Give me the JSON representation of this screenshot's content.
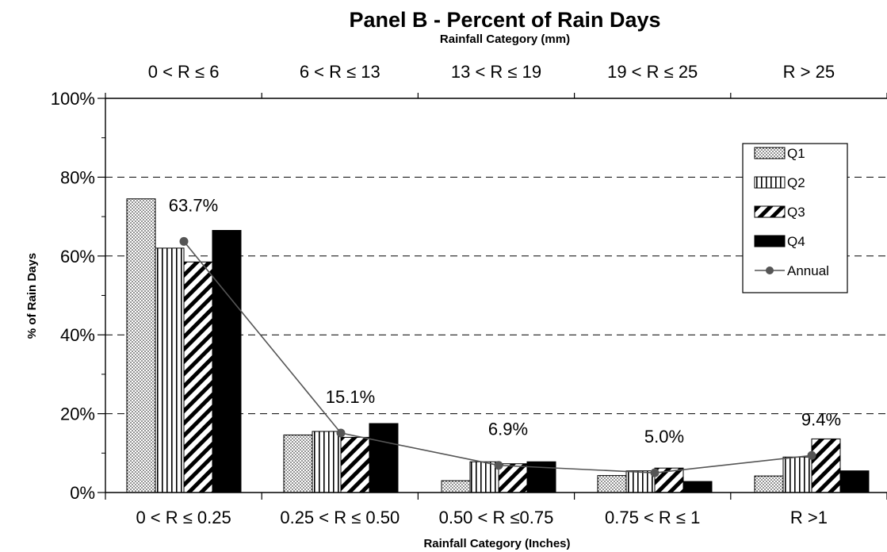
{
  "chart_data": {
    "type": "bar",
    "title": "Panel B - Percent of Rain Days",
    "top_axis_label": "Rainfall Category (mm)",
    "top_categories": [
      "0 < R ≤ 6",
      "6 < R ≤ 13",
      "13 < R ≤ 19",
      "19 < R ≤ 25",
      "R > 25"
    ],
    "xlabel": "Rainfall Category (Inches)",
    "ylabel": "% of Rain Days",
    "categories": [
      "0 < R ≤ 0.25",
      "0.25 < R ≤ 0.50",
      "0.50 < R ≤0.75",
      "0.75 < R ≤ 1",
      "R >1"
    ],
    "ylim": [
      0,
      100
    ],
    "yticks": [
      "0%",
      "20%",
      "40%",
      "60%",
      "80%",
      "100%"
    ],
    "grid": "dashed horizontal at 20% steps",
    "legend_position": "top-right",
    "series": [
      {
        "name": "Q1",
        "pattern": "dots",
        "values": [
          74.5,
          14.6,
          3.0,
          4.3,
          4.2
        ]
      },
      {
        "name": "Q2",
        "pattern": "vertical-stripes",
        "values": [
          62.0,
          15.5,
          7.8,
          5.5,
          9.0
        ]
      },
      {
        "name": "Q3",
        "pattern": "diagonal-stripes",
        "values": [
          58.5,
          14.0,
          7.3,
          6.2,
          13.6
        ]
      },
      {
        "name": "Q4",
        "pattern": "solid",
        "color": "#000000",
        "values": [
          66.5,
          17.5,
          7.8,
          2.8,
          5.5
        ]
      }
    ],
    "line": {
      "name": "Annual",
      "color": "#555555",
      "values": [
        63.7,
        15.1,
        6.9,
        5.0,
        9.4
      ],
      "labels": [
        "63.7%",
        "15.1%",
        "6.9%",
        "5.0%",
        "9.4%"
      ]
    }
  }
}
